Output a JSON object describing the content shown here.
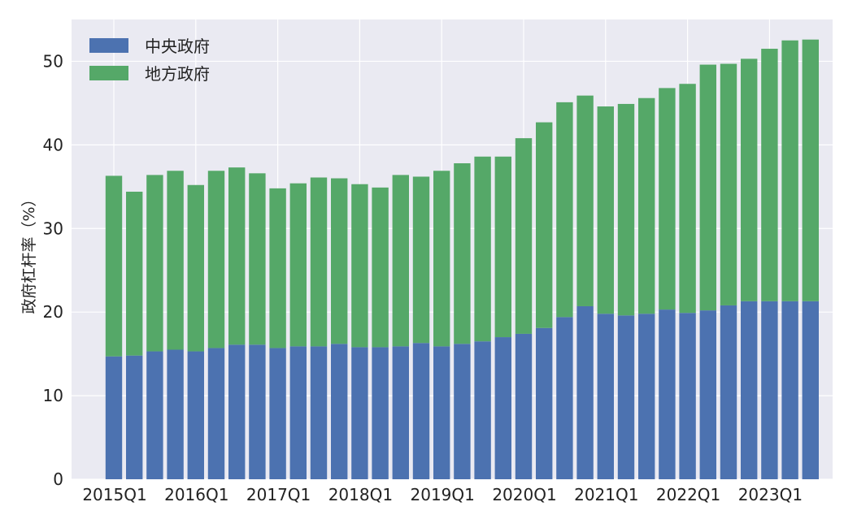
{
  "chart_data": {
    "type": "bar",
    "stacked": true,
    "title": "",
    "xlabel": "",
    "ylabel": "政府杠杆率（%）",
    "ylim": [
      0,
      55
    ],
    "yticks": [
      0,
      10,
      20,
      30,
      40,
      50
    ],
    "grid": true,
    "legend_position": "top-left",
    "background": "#EAEAF2",
    "categories": [
      "2015Q1",
      "2015Q2",
      "2015Q3",
      "2015Q4",
      "2016Q1",
      "2016Q2",
      "2016Q3",
      "2016Q4",
      "2017Q1",
      "2017Q2",
      "2017Q3",
      "2017Q4",
      "2018Q1",
      "2018Q2",
      "2018Q3",
      "2018Q4",
      "2019Q1",
      "2019Q2",
      "2019Q3",
      "2019Q4",
      "2020Q1",
      "2020Q2",
      "2020Q3",
      "2020Q4",
      "2021Q1",
      "2021Q2",
      "2021Q3",
      "2021Q4",
      "2022Q1",
      "2022Q2",
      "2022Q3",
      "2022Q4",
      "2023Q1",
      "2023Q2",
      "2023Q3"
    ],
    "xtick_labels": [
      "2015Q1",
      "2016Q1",
      "2017Q1",
      "2018Q1",
      "2019Q1",
      "2020Q1",
      "2021Q1",
      "2022Q1",
      "2023Q1"
    ],
    "series": [
      {
        "name": "中央政府",
        "color": "#4C72B0",
        "values": [
          14.7,
          14.8,
          15.3,
          15.5,
          15.3,
          15.7,
          16.1,
          16.1,
          15.7,
          15.9,
          15.9,
          16.2,
          15.8,
          15.8,
          15.9,
          16.3,
          15.9,
          16.2,
          16.5,
          17.0,
          17.4,
          18.1,
          19.4,
          20.7,
          19.8,
          19.6,
          19.8,
          20.3,
          19.9,
          20.2,
          20.8,
          21.3,
          21.3,
          21.3,
          21.3
        ]
      },
      {
        "name": "地方政府",
        "color": "#55A868",
        "values": [
          21.6,
          19.6,
          21.1,
          21.4,
          19.9,
          21.2,
          21.2,
          20.5,
          19.1,
          19.5,
          20.2,
          19.8,
          19.5,
          19.1,
          20.5,
          19.9,
          21.0,
          21.6,
          22.1,
          21.6,
          23.4,
          24.6,
          25.7,
          25.2,
          24.8,
          25.3,
          25.8,
          26.5,
          27.4,
          29.4,
          28.9,
          29.0,
          30.2,
          31.2,
          31.3
        ]
      }
    ]
  }
}
